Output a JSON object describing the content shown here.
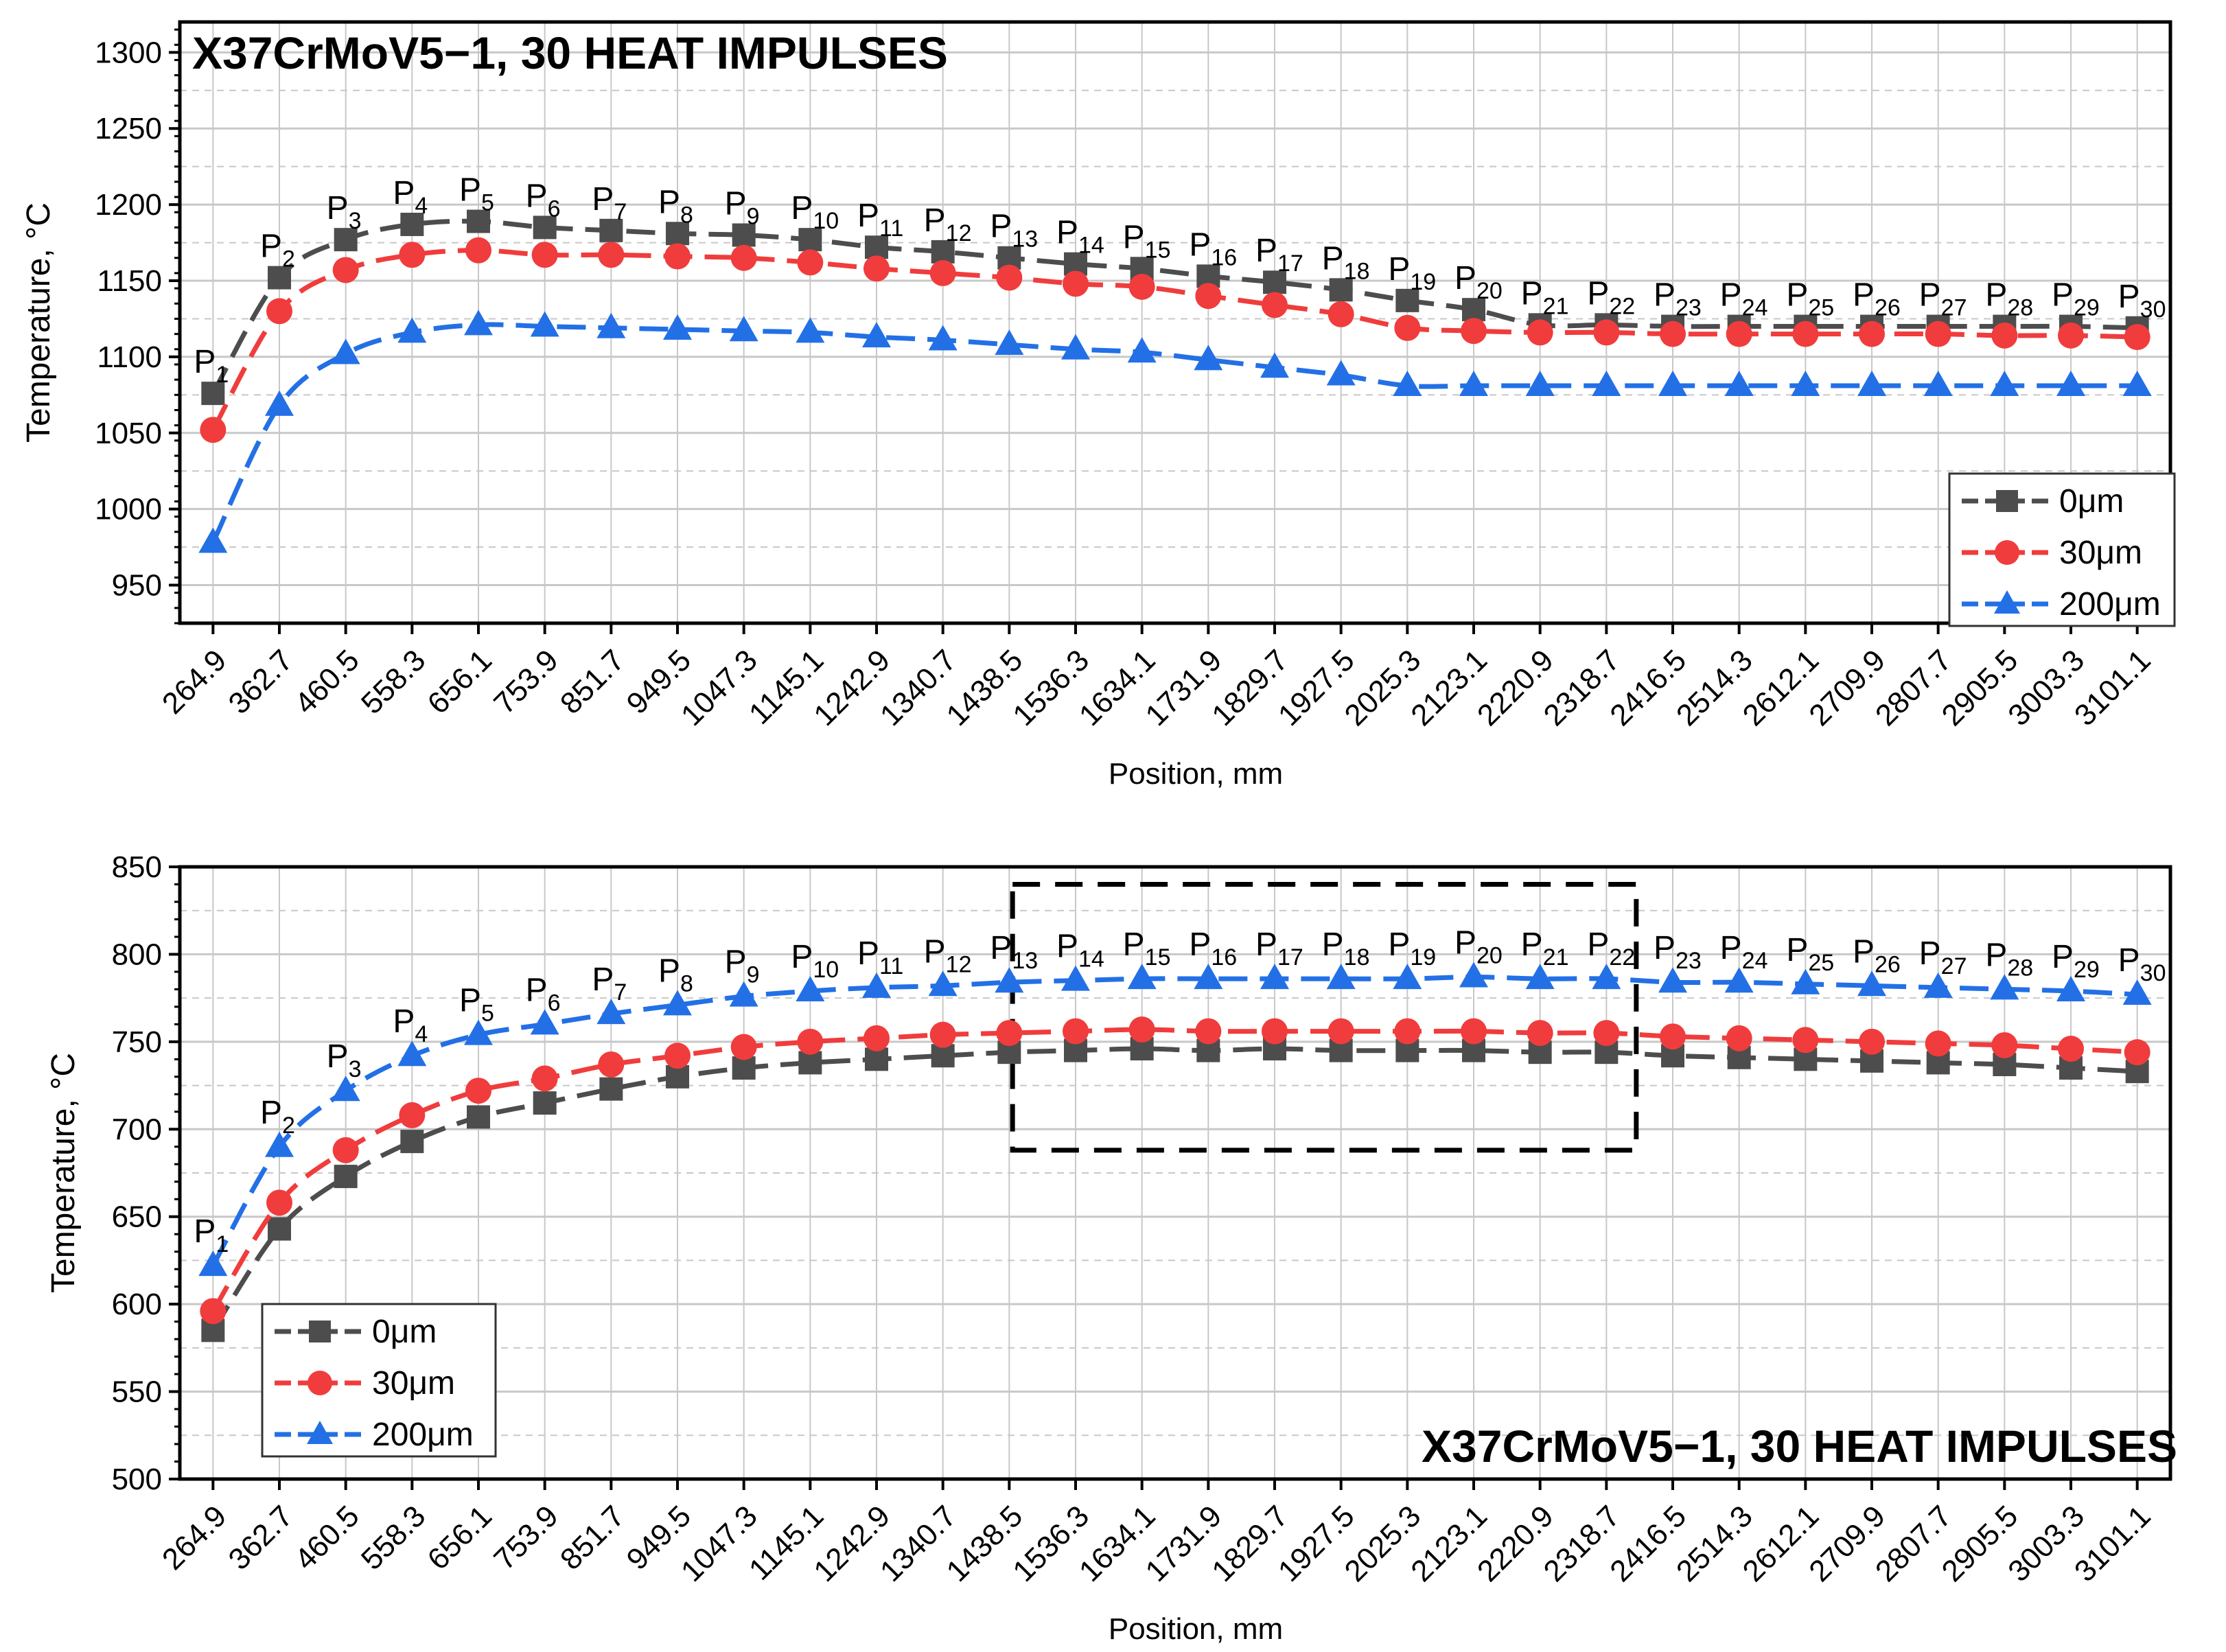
{
  "colors": {
    "s0": "#4d4d4d",
    "s30": "#f03c3c",
    "s200": "#2370e6",
    "grid": "#c8c8c8",
    "frame": "#000000"
  },
  "chart_data": [
    {
      "type": "line",
      "title": "X37CrMoV5−1, 30 HEAT IMPULSES",
      "xlabel": "Position, mm",
      "ylabel": "Temperature, °C",
      "ylim": [
        925,
        1320
      ],
      "yticks": [
        950,
        1000,
        1050,
        1100,
        1150,
        1200,
        1250,
        1300
      ],
      "grid": true,
      "legend_position": "bottom-right",
      "categories": [
        "264.9",
        "362.7",
        "460.5",
        "558.3",
        "656.1",
        "753.9",
        "851.7",
        "949.5",
        "1047.3",
        "1145.1",
        "1242.9",
        "1340.7",
        "1438.5",
        "1536.3",
        "1634.1",
        "1731.9",
        "1829.7",
        "1927.5",
        "2025.3",
        "2123.1",
        "2220.9",
        "2318.7",
        "2416.5",
        "2514.3",
        "2612.1",
        "2709.9",
        "2807.7",
        "2905.5",
        "3003.3",
        "3101.1"
      ],
      "point_labels": [
        "1",
        "2",
        "3",
        "4",
        "5",
        "6",
        "7",
        "8",
        "9",
        "10",
        "11",
        "12",
        "13",
        "14",
        "15",
        "16",
        "17",
        "18",
        "19",
        "20",
        "21",
        "22",
        "23",
        "24",
        "25",
        "26",
        "27",
        "28",
        "29",
        "30"
      ],
      "series": [
        {
          "name": "0μm",
          "marker": "square",
          "values": [
            1076,
            1152,
            1177,
            1187,
            1189,
            1185,
            1183,
            1181,
            1180,
            1177,
            1172,
            1169,
            1165,
            1161,
            1158,
            1153,
            1149,
            1144,
            1137,
            1131,
            1121,
            1121,
            1120,
            1120,
            1120,
            1120,
            1120,
            1120,
            1120,
            1119
          ]
        },
        {
          "name": "30μm",
          "marker": "circle",
          "values": [
            1052,
            1130,
            1157,
            1167,
            1170,
            1167,
            1167,
            1166,
            1165,
            1162,
            1158,
            1155,
            1152,
            1148,
            1146,
            1140,
            1134,
            1128,
            1119,
            1117,
            1116,
            1116,
            1115,
            1115,
            1115,
            1115,
            1115,
            1114,
            1114,
            1113
          ]
        },
        {
          "name": "200μm",
          "marker": "triangle",
          "values": [
            978,
            1068,
            1102,
            1116,
            1121,
            1120,
            1119,
            1118,
            1117,
            1116,
            1113,
            1111,
            1108,
            1105,
            1103,
            1098,
            1093,
            1088,
            1081,
            1081,
            1081,
            1081,
            1081,
            1081,
            1081,
            1081,
            1081,
            1081,
            1081,
            1081
          ]
        }
      ]
    },
    {
      "type": "line",
      "title": "X37CrMoV5−1, 30 HEAT IMPULSES",
      "xlabel": "Position, mm",
      "ylabel": "Temperature, °C",
      "ylim": [
        500,
        850
      ],
      "yticks": [
        500,
        550,
        600,
        650,
        700,
        750,
        800,
        850
      ],
      "grid": true,
      "legend_position": "bottom-left",
      "categories": [
        "264.9",
        "362.7",
        "460.5",
        "558.3",
        "656.1",
        "753.9",
        "851.7",
        "949.5",
        "1047.3",
        "1145.1",
        "1242.9",
        "1340.7",
        "1438.5",
        "1536.3",
        "1634.1",
        "1731.9",
        "1829.7",
        "1927.5",
        "2025.3",
        "2123.1",
        "2220.9",
        "2318.7",
        "2416.5",
        "2514.3",
        "2612.1",
        "2709.9",
        "2807.7",
        "2905.5",
        "3003.3",
        "3101.1"
      ],
      "point_labels": [
        "1",
        "2",
        "3",
        "4",
        "5",
        "6",
        "7",
        "8",
        "9",
        "10",
        "11",
        "12",
        "13",
        "14",
        "15",
        "16",
        "17",
        "18",
        "19",
        "20",
        "21",
        "22",
        "23",
        "24",
        "25",
        "26",
        "27",
        "28",
        "29",
        "30"
      ],
      "highlight_range": {
        "x_from": "1438.5",
        "x_to": "2318.7",
        "y_from": 688,
        "y_to": 840
      },
      "series": [
        {
          "name": "0μm",
          "marker": "square",
          "values": [
            585,
            643,
            673,
            693,
            707,
            715,
            723,
            730,
            735,
            738,
            740,
            742,
            744,
            745,
            746,
            745,
            746,
            745,
            745,
            745,
            744,
            744,
            742,
            741,
            740,
            739,
            738,
            737,
            735,
            733
          ]
        },
        {
          "name": "30μm",
          "marker": "circle",
          "values": [
            596,
            658,
            688,
            708,
            722,
            729,
            737,
            742,
            747,
            750,
            752,
            754,
            755,
            756,
            757,
            756,
            756,
            756,
            756,
            756,
            755,
            755,
            753,
            752,
            751,
            750,
            749,
            748,
            746,
            744
          ]
        },
        {
          "name": "200μm",
          "marker": "triangle",
          "values": [
            622,
            690,
            722,
            742,
            754,
            760,
            766,
            771,
            776,
            779,
            781,
            782,
            784,
            785,
            786,
            786,
            786,
            786,
            786,
            787,
            786,
            786,
            784,
            784,
            783,
            782,
            781,
            780,
            779,
            777
          ]
        }
      ]
    }
  ]
}
